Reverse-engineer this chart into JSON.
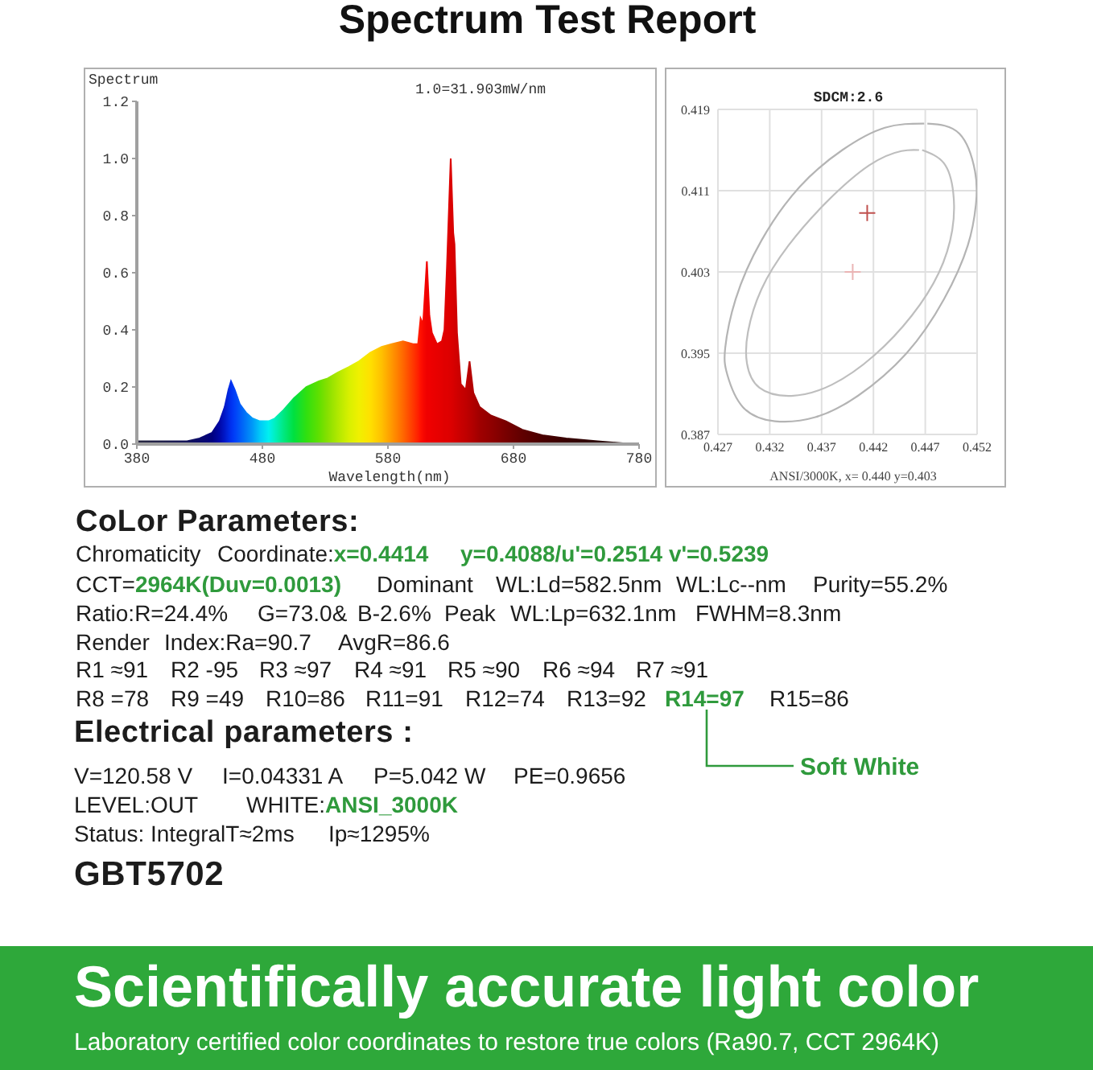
{
  "chart_data": [
    {
      "type": "area",
      "title": "Spectrum Test Report",
      "xlabel": "Wavelength(nm)",
      "ylabel": "Spectrum",
      "annotations": [
        "1.0=31.903mW/nm"
      ],
      "xlim": [
        380,
        780
      ],
      "xticks": [
        380,
        480,
        580,
        680,
        780
      ],
      "ylim": [
        0,
        1.2
      ],
      "yticks": [
        {
          "value": 0,
          "label": "0.0"
        },
        0.2,
        0.4,
        0.6,
        0.8,
        {
          "value": 1,
          "label": "1.0"
        },
        1.2
      ],
      "x": [
        380,
        400,
        420,
        430,
        440,
        446,
        450,
        453,
        455,
        458,
        462,
        467,
        472,
        478,
        485,
        490,
        497,
        505,
        515,
        525,
        532,
        540,
        549,
        557,
        566,
        575,
        583,
        592,
        600,
        604,
        606,
        608,
        611,
        613,
        615,
        619,
        623,
        625,
        627,
        630,
        632,
        633,
        635,
        638,
        642,
        645,
        648,
        653,
        662,
        674,
        687,
        704,
        722,
        747,
        775,
        780
      ],
      "series": [
        {
          "values": [
            0.01,
            0.01,
            0.01,
            0.02,
            0.04,
            0.08,
            0.13,
            0.19,
            0.22,
            0.19,
            0.14,
            0.11,
            0.09,
            0.08,
            0.08,
            0.09,
            0.12,
            0.16,
            0.2,
            0.22,
            0.23,
            0.25,
            0.27,
            0.29,
            0.32,
            0.34,
            0.35,
            0.36,
            0.35,
            0.35,
            0.44,
            0.42,
            0.64,
            0.45,
            0.39,
            0.35,
            0.36,
            0.4,
            0.62,
            1.0,
            0.74,
            0.7,
            0.39,
            0.21,
            0.19,
            0.29,
            0.18,
            0.13,
            0.1,
            0.08,
            0.05,
            0.03,
            0.02,
            0.01,
            0,
            0
          ],
          "colors": [
            "#282840",
            "#20204a",
            "#14145a",
            "#0a0a6a",
            "#000080",
            "#0008a8",
            "#0018c8",
            "#0028e0",
            "#0030f0",
            "#0040f8",
            "#0058f8",
            "#0078f8",
            "#0098f8",
            "#00c8f8",
            "#00f0f0",
            "#00f0c0",
            "#00e880",
            "#00e040",
            "#30e010",
            "#60e000",
            "#88e000",
            "#b0e800",
            "#d8f000",
            "#f0f000",
            "#ffe000",
            "#ffc000",
            "#ff9800",
            "#ff6800",
            "#ff3800",
            "#ff2000",
            "#ff1000",
            "#f80800",
            "#f00000",
            "#f00000",
            "#ec0000",
            "#e80000",
            "#e40000",
            "#e00000",
            "#e00000",
            "#dc0000",
            "#d80000",
            "#d40000",
            "#d00000",
            "#c80000",
            "#c00000",
            "#b80000",
            "#b00000",
            "#a00000",
            "#900000",
            "#780000",
            "#600000",
            "#480000",
            "#380000",
            "#2c0808",
            "#281010",
            "#281010"
          ]
        }
      ]
    },
    {
      "type": "scatter",
      "title": "SDCM:2.6",
      "xlabel": "ANSI/3000K, x= 0.440 y=0.403",
      "xlim": [
        0.427,
        0.452
      ],
      "xticks": [
        0.427,
        0.432,
        0.437,
        0.442,
        0.447,
        0.452
      ],
      "ylim": [
        0.387,
        0.419
      ],
      "yticks": [
        0.387,
        0.395,
        0.403,
        0.411,
        0.419
      ],
      "grid": true,
      "marker": "cross",
      "series": [
        {
          "type": "line",
          "marker": "none",
          "color": "#b4b4b4",
          "x": [
            0.4472,
            0.4503,
            0.4518,
            0.4519,
            0.4511,
            0.4488,
            0.4452,
            0.4405,
            0.4364,
            0.4325,
            0.4294,
            0.4279,
            0.4277,
            0.4287,
            0.4312,
            0.4349,
            0.439,
            0.4431,
            0.4469
          ],
          "values": [
            0.4176,
            0.4166,
            0.4129,
            0.4098,
            0.4056,
            0.4003,
            0.395,
            0.3908,
            0.3887,
            0.3883,
            0.3897,
            0.3929,
            0.3955,
            0.4003,
            0.4061,
            0.4114,
            0.415,
            0.4172,
            0.4176
          ]
        },
        {
          "type": "line",
          "marker": "none",
          "color": "#bebebe",
          "x": [
            0.4467,
            0.4488,
            0.4497,
            0.4496,
            0.4483,
            0.4457,
            0.4421,
            0.438,
            0.4341,
            0.431,
            0.4298,
            0.4299,
            0.4312,
            0.4338,
            0.4374,
            0.4416,
            0.4447,
            0.4464
          ],
          "values": [
            0.415,
            0.4137,
            0.4108,
            0.4071,
            0.4029,
            0.3987,
            0.3948,
            0.3919,
            0.3908,
            0.3916,
            0.394,
            0.3971,
            0.4013,
            0.4056,
            0.4098,
            0.4135,
            0.4149,
            0.415
          ]
        },
        {
          "x": [
            0.4414,
            0.44
          ],
          "values": [
            0.4088,
            0.403
          ],
          "colors": [
            "#c0504d",
            "#eab4b4"
          ]
        }
      ]
    },
    {
      "type": "other",
      "annotations": [
        "CoLor Parameters:",
        "Chromaticity",
        "Coordinate:",
        "x=0.4414",
        "y=0.4088/u'=0.2514 v'=0.5239",
        "CCT=",
        "2964K(Duv=0.0013)",
        "Dominant",
        "WL:Ld=582.5nm",
        "WL:Lc--nm",
        "Purity=55.2%",
        "Ratio:R=24.4%",
        "G=73.0&",
        "B-2.6%",
        "Peak",
        "WL:Lp=632.1nm",
        "FWHM=8.3nm",
        "Render",
        "Index:Ra=90.7",
        "AvgR=86.6",
        "R1 ≈91",
        "R2 -95",
        "R3 ≈97",
        "R4 ≈91",
        "R5 ≈90",
        "R6 ≈94",
        "R7 ≈91",
        "R8 =78",
        "R9 =49",
        "R10=86",
        "R11=91",
        "R12=74",
        "R13=92",
        "R14=97",
        "R15=86",
        "Soft White",
        "Electrical parameters :",
        "V=120.58 V",
        "I=0.04331 A",
        "P=5.042 W",
        "PE=0.9656",
        "LEVEL:OUT",
        "WHITE:",
        "ANSI_3000K",
        "Status: IntegralT≈2ms",
        "Ip≈1295%",
        "GBT5702"
      ]
    },
    {
      "type": "other",
      "title": "Scientifically accurate light color",
      "subtitle": "Laboratory certified color coordinates to restore true colors (Ra90.7, CCT 2964K)"
    }
  ]
}
